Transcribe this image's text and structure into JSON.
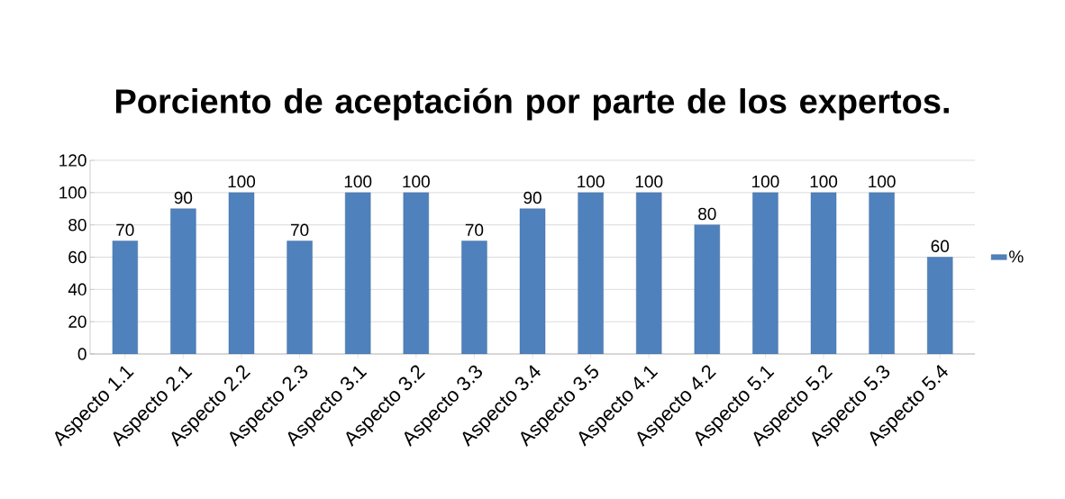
{
  "chart_data": {
    "type": "bar",
    "title": "Porciento de aceptación por parte de los expertos.",
    "categories": [
      "Aspecto 1.1",
      "Aspecto 2.1",
      "Aspecto 2.2",
      "Aspecto 2.3",
      "Aspecto 3.1",
      "Aspecto 3.2",
      "Aspecto 3.3",
      "Aspecto 3.4",
      "Aspecto 3.5",
      "Aspecto 4.1",
      "Aspecto 4.2",
      "Aspecto 5.1",
      "Aspecto 5.2",
      "Aspecto 5.3",
      "Aspecto 5.4"
    ],
    "series": [
      {
        "name": "%",
        "color": "#4f81bd",
        "values": [
          70,
          90,
          100,
          70,
          100,
          100,
          70,
          90,
          100,
          100,
          80,
          100,
          100,
          100,
          60
        ]
      }
    ],
    "ylim": [
      0,
      120
    ],
    "yticks": [
      0,
      20,
      40,
      60,
      80,
      100,
      120
    ],
    "grid": "y",
    "legend": "right",
    "data_labels": true
  }
}
